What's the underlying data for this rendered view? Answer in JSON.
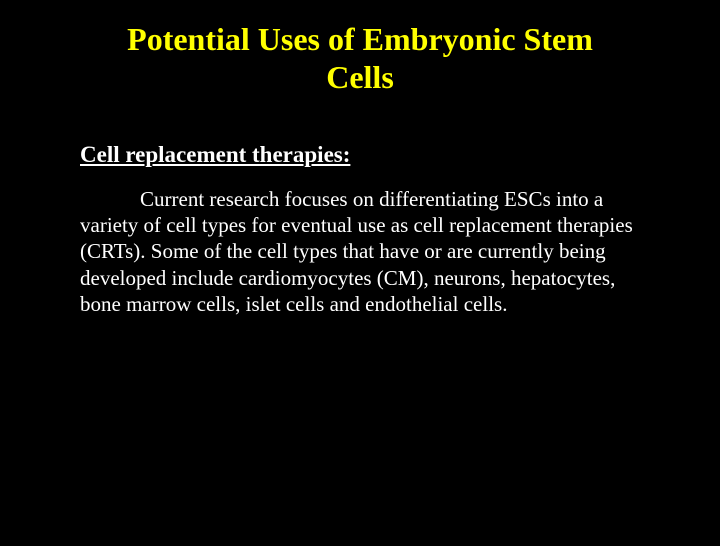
{
  "slide": {
    "title": "Potential Uses of Embryonic Stem Cells",
    "subtitle": "Cell replacement therapies:",
    "body": "Current research focuses on differentiating ESCs into a variety of cell types for eventual use as cell replacement therapies (CRTs). Some of the cell types that have or are currently being developed include cardiomyocytes (CM), neurons, hepatocytes, bone marrow cells, islet cells and endothelial cells.",
    "colors": {
      "background": "#000000",
      "title_color": "#ffff00",
      "text_color": "#ffffff"
    },
    "typography": {
      "title_fontsize": 32,
      "subtitle_fontsize": 23,
      "body_fontsize": 21,
      "font_family": "Times New Roman"
    }
  }
}
